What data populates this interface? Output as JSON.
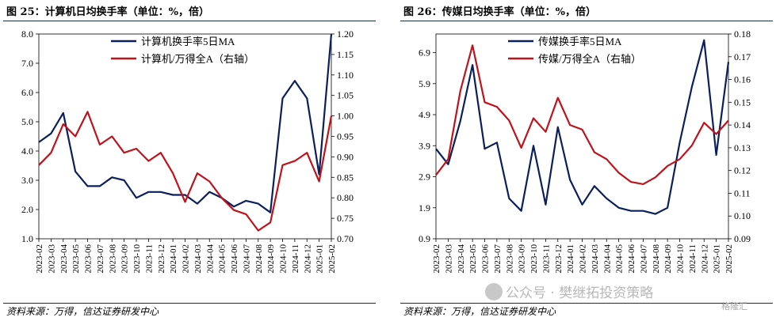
{
  "figures": [
    {
      "title": "图 25：计算机日均换手率（单位：%，倍）",
      "source": "资料来源：万得，信达证券研发中心"
    },
    {
      "title": "图 26：传媒日均换手率（单位：%，倍）",
      "source": "资料来源：万得，信达证券研发中心"
    }
  ],
  "watermark": {
    "text": "公众号 · 樊继拓投资策略",
    "badge": "格隆汇"
  },
  "chart_data": [
    {
      "type": "line",
      "x_ticks": [
        "2023-02",
        "2023-03",
        "2023-04",
        "2023-05",
        "2023-06",
        "2023-07",
        "2023-08",
        "2023-09",
        "2023-10",
        "2023-11",
        "2023-12",
        "2024-01",
        "2024-02",
        "2024-03",
        "2024-04",
        "2024-05",
        "2024-06",
        "2024-07",
        "2024-08",
        "2024-09",
        "2024-10",
        "2024-11",
        "2024-12",
        "2025-01",
        "2025-02"
      ],
      "ylim_left": [
        1.0,
        8.0
      ],
      "yticks_left": [
        "1.0",
        "2.0",
        "3.0",
        "4.0",
        "5.0",
        "6.0",
        "7.0",
        "8.0"
      ],
      "ylim_right": [
        0.7,
        1.2
      ],
      "yticks_right": [
        "0.70",
        "0.75",
        "0.80",
        "0.85",
        "0.90",
        "0.95",
        "1.00",
        "1.05",
        "1.10",
        "1.15",
        "1.20"
      ],
      "legend_position": "top",
      "series": [
        {
          "name": "计算机换手率5日MA",
          "axis": "left",
          "color": "#0b1f5c",
          "values": [
            4.3,
            4.6,
            5.3,
            3.3,
            2.8,
            2.8,
            3.1,
            3.0,
            2.4,
            2.6,
            2.6,
            2.5,
            2.5,
            2.2,
            2.6,
            2.4,
            2.1,
            2.3,
            2.2,
            1.9,
            5.8,
            6.4,
            5.8,
            3.2,
            8.0
          ]
        },
        {
          "name": "计算机/万得全A（右轴）",
          "axis": "right",
          "color": "#c0121b",
          "values": [
            0.88,
            0.91,
            0.98,
            0.95,
            1.01,
            0.93,
            0.95,
            0.91,
            0.92,
            0.89,
            0.91,
            0.86,
            0.79,
            0.86,
            0.84,
            0.8,
            0.77,
            0.76,
            0.72,
            0.74,
            0.88,
            0.89,
            0.91,
            0.84,
            1.0
          ]
        }
      ]
    },
    {
      "type": "line",
      "x_ticks": [
        "2023-02",
        "2023-03",
        "2023-04",
        "2023-05",
        "2023-06",
        "2023-07",
        "2023-08",
        "2023-09",
        "2023-10",
        "2023-11",
        "2023-12",
        "2024-01",
        "2024-02",
        "2024-03",
        "2024-04",
        "2024-05",
        "2024-06",
        "2024-07",
        "2024-08",
        "2024-09",
        "2024-10",
        "2024-11",
        "2024-12",
        "2025-01",
        "2025-02"
      ],
      "ylim_left": [
        0.9,
        7.5
      ],
      "yticks_left": [
        "0.9",
        "1.9",
        "2.9",
        "3.9",
        "4.9",
        "5.9",
        "6.9"
      ],
      "ylim_right": [
        0.09,
        0.18
      ],
      "yticks_right": [
        "0.09",
        "0.10",
        "0.11",
        "0.12",
        "0.13",
        "0.14",
        "0.15",
        "0.16",
        "0.17",
        "0.18"
      ],
      "legend_position": "top",
      "series": [
        {
          "name": "传媒换手率5日MA",
          "axis": "left",
          "color": "#0b1f5c",
          "values": [
            3.8,
            3.3,
            4.7,
            6.5,
            3.8,
            4.0,
            2.2,
            1.8,
            3.9,
            2.0,
            4.5,
            2.8,
            2.0,
            2.6,
            2.2,
            1.9,
            1.8,
            1.8,
            1.7,
            1.9,
            4.0,
            5.8,
            7.3,
            3.6,
            6.6
          ]
        },
        {
          "name": "传媒/万得全A（右轴）",
          "axis": "right",
          "color": "#c0121b",
          "values": [
            0.118,
            0.125,
            0.155,
            0.175,
            0.15,
            0.148,
            0.142,
            0.13,
            0.143,
            0.137,
            0.152,
            0.14,
            0.138,
            0.128,
            0.125,
            0.119,
            0.115,
            0.114,
            0.117,
            0.122,
            0.125,
            0.131,
            0.141,
            0.136,
            0.142
          ]
        }
      ]
    }
  ]
}
